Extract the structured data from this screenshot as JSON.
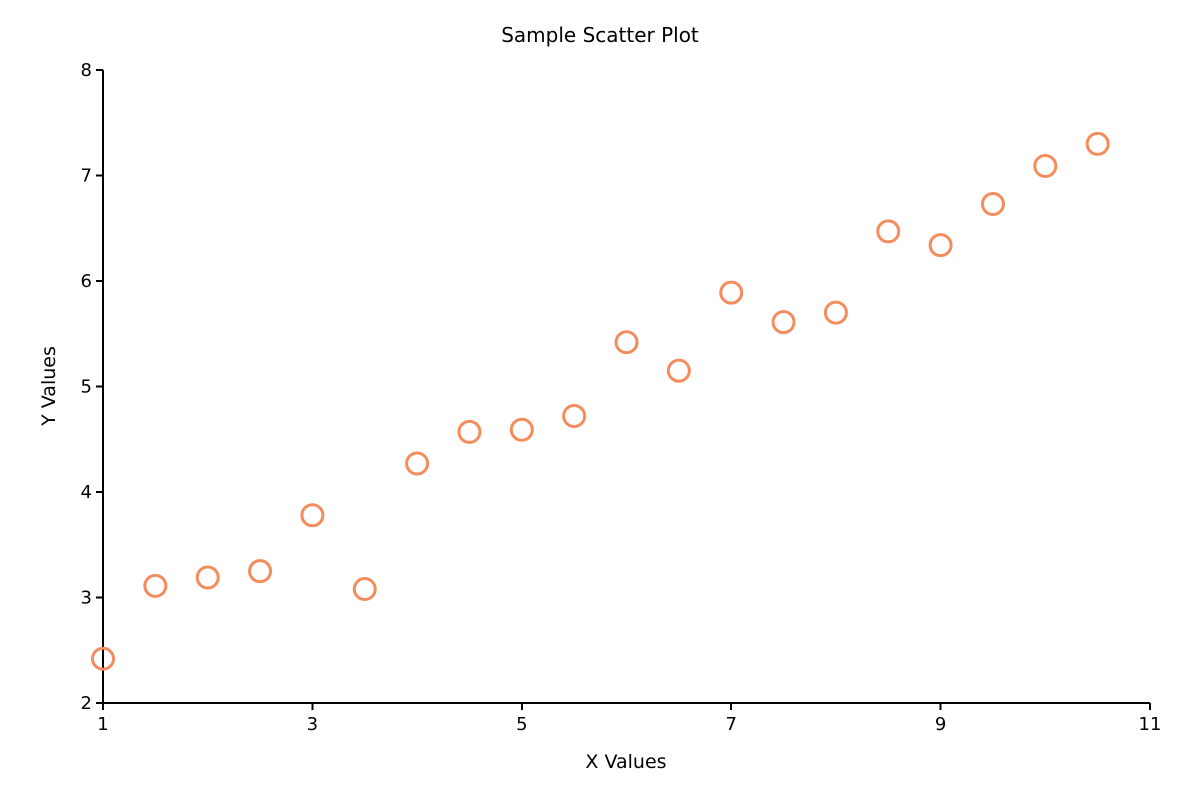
{
  "chart_data": {
    "type": "scatter",
    "title": "Sample Scatter Plot",
    "xlabel": "X Values",
    "ylabel": "Y Values",
    "xlim": [
      1,
      11
    ],
    "ylim": [
      2,
      8
    ],
    "xticks": [
      1,
      3,
      5,
      7,
      9,
      11
    ],
    "yticks": [
      2,
      3,
      4,
      5,
      6,
      7,
      8
    ],
    "marker_color": "#f48c5e",
    "marker": "hollow-circle",
    "grid": false,
    "points": [
      {
        "x": 1.0,
        "y": 2.42
      },
      {
        "x": 1.5,
        "y": 3.11
      },
      {
        "x": 2.0,
        "y": 3.19
      },
      {
        "x": 2.5,
        "y": 3.25
      },
      {
        "x": 3.0,
        "y": 3.78
      },
      {
        "x": 3.5,
        "y": 3.08
      },
      {
        "x": 4.0,
        "y": 4.27
      },
      {
        "x": 4.5,
        "y": 4.57
      },
      {
        "x": 5.0,
        "y": 4.59
      },
      {
        "x": 5.5,
        "y": 4.72
      },
      {
        "x": 6.0,
        "y": 5.42
      },
      {
        "x": 6.5,
        "y": 5.15
      },
      {
        "x": 7.0,
        "y": 5.89
      },
      {
        "x": 7.5,
        "y": 5.61
      },
      {
        "x": 8.0,
        "y": 5.7
      },
      {
        "x": 8.5,
        "y": 6.47
      },
      {
        "x": 9.0,
        "y": 6.34
      },
      {
        "x": 9.5,
        "y": 6.73
      },
      {
        "x": 10.0,
        "y": 7.09
      },
      {
        "x": 10.5,
        "y": 7.3
      }
    ]
  }
}
